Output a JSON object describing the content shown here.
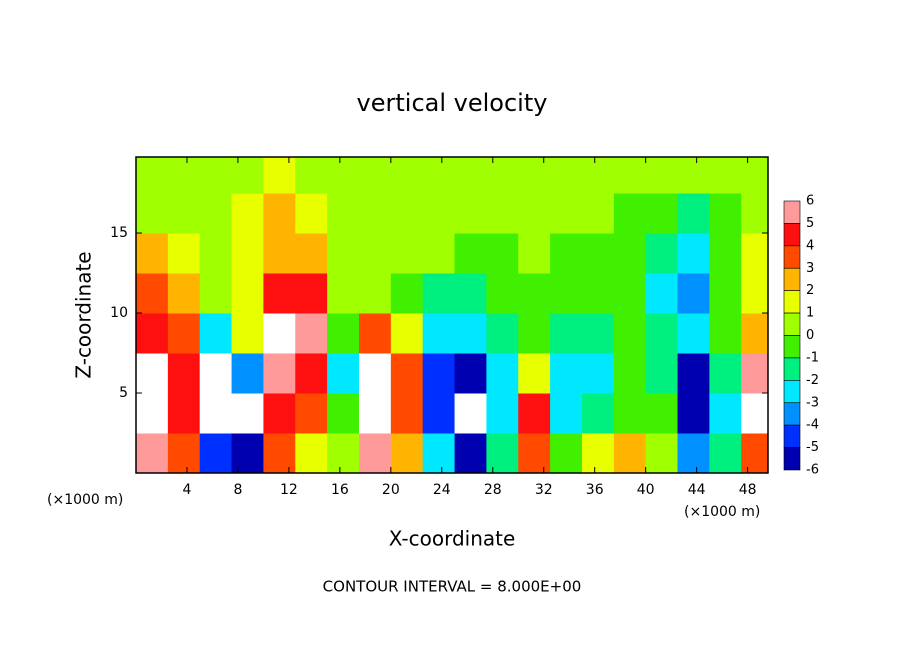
{
  "chart_data": {
    "type": "heatmap",
    "title": "vertical velocity",
    "x_label": "X-coordinate",
    "y_label": "Z-coordinate",
    "x_unit": "(×1000 m)",
    "y_unit": "(×1000 m)",
    "footnote": "CONTOUR INTERVAL = 8.000E+00",
    "xlim": [
      0,
      49.6
    ],
    "ylim": [
      0,
      19.75
    ],
    "xticks": [
      4,
      8,
      12,
      16,
      20,
      24,
      28,
      32,
      36,
      40,
      44,
      48
    ],
    "yticks": [
      5,
      10,
      15
    ],
    "x": [
      1.25,
      3.75,
      6.25,
      8.75,
      11.25,
      13.75,
      16.25,
      18.75,
      21.25,
      23.75,
      26.25,
      28.75,
      31.25,
      33.75,
      36.25,
      38.75,
      41.25,
      43.75,
      46.25,
      48.75
    ],
    "z": [
      1.25,
      3.75,
      6.25,
      8.75,
      11.25,
      13.75,
      16.25,
      18.75
    ],
    "values": [
      [
        5,
        8,
        8,
        4,
        3,
        2,
        0.5,
        0.5
      ],
      [
        3,
        4,
        4,
        3,
        2,
        1,
        0.5,
        0.5
      ],
      [
        -5,
        -7,
        -7,
        -3,
        0.5,
        0.5,
        0.5,
        0.5
      ],
      [
        -6,
        -7,
        -4,
        1,
        1,
        1,
        1,
        0.5
      ],
      [
        3,
        4,
        5,
        7,
        4,
        2,
        2,
        1
      ],
      [
        1,
        3,
        4,
        5,
        4,
        2,
        1,
        0.5
      ],
      [
        0,
        -1,
        -3,
        -1,
        0,
        0.5,
        0.5,
        0.5
      ],
      [
        6,
        8,
        7,
        3,
        0,
        0,
        0.5,
        0.5
      ],
      [
        2,
        3,
        3,
        1,
        -1,
        0,
        0.5,
        0.5
      ],
      [
        -3,
        -5,
        -5,
        -3,
        -2,
        0,
        0,
        0.5
      ],
      [
        -6,
        -7,
        -6,
        -3,
        -2,
        -1,
        0,
        0.5
      ],
      [
        -2,
        -3,
        -3,
        -2,
        -1,
        -1,
        0.5,
        0.5
      ],
      [
        3,
        4,
        1,
        -1,
        -1,
        0,
        0.5,
        0.5
      ],
      [
        -1,
        -3,
        -3,
        -2,
        -1,
        -1,
        0,
        0.5
      ],
      [
        1,
        -2,
        -3,
        -2,
        -1,
        -1,
        0,
        0.5
      ],
      [
        2,
        -1,
        -1,
        -1,
        -1,
        -1,
        -1,
        0
      ],
      [
        0,
        -1,
        -2,
        -2,
        -3,
        -2,
        -1,
        0
      ],
      [
        -4,
        -6,
        -6,
        -3,
        -4,
        -3,
        -2,
        0
      ],
      [
        -2,
        -3,
        -2,
        -1,
        -1,
        -1,
        -1,
        0
      ],
      [
        3,
        7,
        6,
        2,
        1,
        1,
        0.5,
        0.5
      ]
    ],
    "levels": [
      6,
      5,
      4,
      3,
      2,
      1,
      0,
      -1,
      -2,
      -3,
      -4,
      -5,
      -6
    ],
    "colors": [
      "#ff9a9a",
      "#ff1010",
      "#ff4a00",
      "#ffb400",
      "#e8ff00",
      "#a0ff00",
      "#40f000",
      "#00f080",
      "#00e8ff",
      "#0090ff",
      "#0030ff",
      "#0000b0"
    ],
    "out_of_range_color": "#ffffff"
  }
}
